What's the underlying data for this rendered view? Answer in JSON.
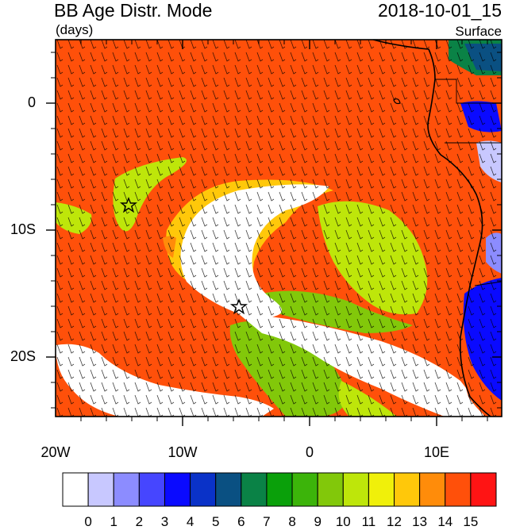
{
  "header": {
    "title": "BB Age Distr. Mode",
    "units": "(days)",
    "datetime": "2018-10-01_15",
    "level": "Surface"
  },
  "axes": {
    "lat_labels": [
      "0",
      "10S",
      "20S"
    ],
    "lon_labels": [
      "20W",
      "10W",
      "0",
      "10E"
    ]
  },
  "colorbar": {
    "labels": [
      "0",
      "1",
      "2",
      "3",
      "4",
      "5",
      "6",
      "7",
      "8",
      "9",
      "10",
      "11",
      "12",
      "13",
      "14",
      "15"
    ],
    "colors": [
      "#ffffff",
      "#c8c8ff",
      "#8c8cff",
      "#4646ff",
      "#0a0aff",
      "#0a32c8",
      "#0a5082",
      "#0a8246",
      "#0aa00a",
      "#3cb40a",
      "#82c80a",
      "#bee60a",
      "#f0f00a",
      "#ffc80a",
      "#ff8c0a",
      "#ff500a",
      "#ff1414"
    ]
  },
  "map": {
    "markers": [
      "star-marker-1",
      "star-marker-2"
    ],
    "colors": {
      "ocean_dominant": "#ff500a",
      "young_plume": "#ffffff",
      "green_band": "#bee60a",
      "blue_land": "#0a0aff",
      "coast": "#000000"
    }
  }
}
